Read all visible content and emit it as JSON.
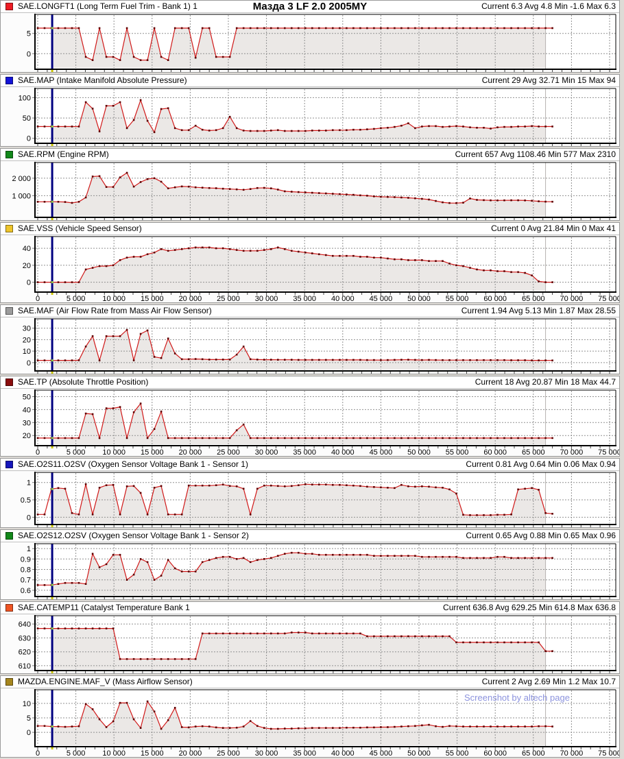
{
  "window": {
    "title": "Мазда 3 LF 2.0 2005MY",
    "watermark": "Screenshot by altech page"
  },
  "style": {
    "line_color": "#d01818",
    "point_color": "#5e0000",
    "fill_color": "#ebe8e6",
    "grid_color": "#909090",
    "cursor_color": "#000080",
    "cursor_dot_color": "#90d04a",
    "cursor_tick_color": "#cdc700",
    "selection_end_color": "#b4b0ae",
    "watermark_color": "#8c93de"
  },
  "cursor": {
    "x": 1900
  },
  "selection_end_x": 66600,
  "sample_step": 900,
  "x_axis": {
    "max": 75000,
    "major_step": 5000,
    "minor_step": 1250,
    "labels": [
      "0",
      "5 000",
      "10 000",
      "15 000",
      "20 000",
      "25 000",
      "30 000",
      "35 000",
      "40 000",
      "45 000",
      "50 000",
      "55 000",
      "60 000",
      "65 000",
      "70 000",
      "75 000"
    ]
  },
  "panels": [
    {
      "icon_color": "#ed1c24",
      "title": "SAE.LONGFT1 (Long Term Fuel Trim - Bank 1) 1",
      "stats": "Current 6.3 Avg 4.8 Min -1.6 Max 6.3",
      "h": 106,
      "x_labels": false
    },
    {
      "icon_color": "#1414d8",
      "title": "SAE.MAP (Intake Manifold Absolute Pressure)",
      "stats": "Current 29 Avg 32.71 Min 15 Max 94",
      "h": 106,
      "x_labels": false
    },
    {
      "icon_color": "#12881a",
      "title": "SAE.RPM (Engine RPM)",
      "stats": "Current 657 Avg 1108.46 Min 577 Max 2310",
      "h": 106,
      "x_labels": false
    },
    {
      "icon_color": "#eec52a",
      "title": "SAE.VSS (Vehicle Speed Sensor)",
      "stats": "Current 0 Avg 21.84 Min 0 Max 41",
      "h": 118,
      "x_labels": true
    },
    {
      "icon_color": "#9c9c9c",
      "title": "SAE.MAF (Air Flow Rate from Mass Air Flow Sensor)",
      "stats": "Current 1.94 Avg 5.13 Min 1.87 Max 28.55",
      "h": 102,
      "x_labels": false
    },
    {
      "icon_color": "#8a0d0d",
      "title": "SAE.TP (Absolute Throttle Position)",
      "stats": "Current 18 Avg 20.87 Min 18 Max 44.7",
      "h": 118,
      "x_labels": true
    },
    {
      "icon_color": "#1616bb",
      "title": "SAE.O2S11.O2SV (Oxygen Sensor Voltage Bank 1 - Sensor 1)",
      "stats": "Current 0.81 Avg 0.64 Min 0.06 Max 0.94",
      "h": 102,
      "x_labels": false
    },
    {
      "icon_color": "#12881a",
      "title": "SAE.O2S12.O2SV (Oxygen Sensor Voltage Bank 1 - Sensor 2)",
      "stats": "Current 0.65 Avg 0.88 Min 0.65 Max 0.96",
      "h": 103,
      "x_labels": false
    },
    {
      "icon_color": "#ef5423",
      "title": "SAE.CATEMP11 (Catalyst Temperature Bank 1",
      "stats": "Current 636.8 Avg 629.25 Min 614.8 Max 636.8",
      "h": 106,
      "x_labels": false
    },
    {
      "icon_color": "#a6861e",
      "title": "MAZDA.ENGINE.MAF_V (Mass Airflow Sensor)",
      "stats": "Current 2 Avg 2.69 Min 1.2 Max 10.7",
      "h": 120,
      "x_labels": true
    }
  ],
  "chart_data": [
    {
      "type": "line",
      "name": "SAE.LONGFT1",
      "ylim": [
        -3.5,
        9.5
      ],
      "y_tick_values": [
        5,
        0
      ],
      "y_tick_labels": [
        "5",
        "0"
      ],
      "values": [
        6.3,
        6.3,
        6.3,
        6.3,
        6.3,
        6.3,
        6.3,
        -0.8,
        -1.6,
        6.3,
        -0.8,
        -0.8,
        -1.6,
        6.3,
        -0.8,
        -1.6,
        -1.6,
        6.3,
        -0.8,
        -1.6,
        6.3,
        6.3,
        6.3,
        -1,
        6.3,
        6.3,
        -0.8,
        -0.8,
        -0.8,
        6.3,
        6.3,
        6.3,
        6.3,
        6.3,
        6.3,
        6.3,
        6.3,
        6.3,
        6.3,
        6.3,
        6.3,
        6.3,
        6.3,
        6.3,
        6.3,
        6.3,
        6.3,
        6.3,
        6.3,
        6.3,
        6.3,
        6.3,
        6.3,
        6.3,
        6.3,
        6.3,
        6.3,
        6.3,
        6.3,
        6.3,
        6.3,
        6.3,
        6.3,
        6.3,
        6.3,
        6.3,
        6.3,
        6.3,
        6.3,
        6.3,
        6.3,
        6.3,
        6.3,
        6.3,
        6.3,
        6.3
      ]
    },
    {
      "type": "line",
      "name": "SAE.MAP",
      "ylim": [
        -9,
        121
      ],
      "y_tick_values": [
        100,
        50,
        0
      ],
      "y_tick_labels": [
        "100",
        "50",
        "0"
      ],
      "values": [
        29,
        29,
        29,
        29,
        29,
        29,
        29,
        89,
        73,
        17,
        80,
        80,
        89,
        25,
        45,
        94,
        43,
        15,
        72,
        74,
        25,
        20,
        20,
        31,
        21,
        19,
        20,
        25,
        53,
        25,
        19,
        18,
        18,
        18,
        19,
        20,
        18,
        18,
        18,
        18,
        19,
        19,
        19,
        20,
        20,
        20,
        21,
        21,
        22,
        23,
        25,
        26,
        28,
        31,
        37,
        25,
        29,
        30,
        30,
        28,
        29,
        30,
        29,
        27,
        26,
        26,
        24,
        27,
        28,
        28,
        29,
        29,
        30,
        29,
        29,
        29
      ]
    },
    {
      "type": "line",
      "name": "SAE.RPM",
      "ylim": [
        -160,
        2860
      ],
      "y_tick_values": [
        2000,
        1000
      ],
      "y_tick_labels": [
        "2 000",
        "1 000"
      ],
      "values": [
        650,
        650,
        657,
        650,
        640,
        590,
        650,
        900,
        2100,
        2120,
        1500,
        1500,
        2050,
        2310,
        1520,
        1780,
        1950,
        2000,
        1800,
        1420,
        1480,
        1530,
        1520,
        1480,
        1460,
        1440,
        1430,
        1400,
        1380,
        1360,
        1340,
        1380,
        1440,
        1450,
        1420,
        1350,
        1250,
        1230,
        1210,
        1190,
        1170,
        1150,
        1130,
        1110,
        1090,
        1070,
        1050,
        1020,
        1000,
        960,
        940,
        930,
        920,
        900,
        880,
        850,
        820,
        780,
        700,
        620,
        580,
        577,
        600,
        840,
        760,
        745,
        735,
        730,
        735,
        740,
        740,
        730,
        710,
        680,
        660,
        657
      ]
    },
    {
      "type": "line",
      "name": "SAE.VSS",
      "ylim": [
        -10,
        53
      ],
      "y_tick_values": [
        40,
        20,
        0
      ],
      "y_tick_labels": [
        "40",
        "20",
        "0"
      ],
      "values": [
        0,
        0,
        0,
        0,
        0,
        0,
        0,
        15,
        17,
        19,
        19,
        20,
        26,
        29,
        30,
        30,
        33,
        35,
        39,
        37,
        38,
        39,
        40,
        41,
        41,
        41,
        40,
        40,
        39,
        38,
        37,
        37,
        37,
        38,
        39,
        41,
        39,
        37,
        36,
        35,
        34,
        33,
        32,
        31,
        31,
        31,
        31,
        30,
        30,
        29,
        29,
        28,
        27,
        27,
        26,
        26,
        26,
        25,
        25,
        25,
        22,
        20,
        19,
        17,
        15,
        14,
        14,
        13,
        13,
        12,
        12,
        11,
        8,
        1,
        0,
        0
      ]
    },
    {
      "type": "line",
      "name": "SAE.MAF",
      "ylim": [
        -6,
        37.5
      ],
      "y_tick_values": [
        30,
        20,
        10,
        0
      ],
      "y_tick_labels": [
        "30",
        "20",
        "10",
        "0"
      ],
      "values": [
        2,
        2,
        1.9,
        2,
        2,
        2,
        2.1,
        14,
        23,
        1.9,
        23,
        23,
        23,
        28.5,
        2,
        25,
        28,
        5,
        4,
        21,
        8,
        3,
        3,
        3.2,
        3,
        2.7,
        2.7,
        2.7,
        2.7,
        7,
        14,
        3,
        2.7,
        2.6,
        2.6,
        2.5,
        2.5,
        2.5,
        2.4,
        2.4,
        2.4,
        2.4,
        2.4,
        2.4,
        2.4,
        2.4,
        2.4,
        2.4,
        2.3,
        2.3,
        2.2,
        2.3,
        2.4,
        2.5,
        2.6,
        2.4,
        2.3,
        2.4,
        2.3,
        2.2,
        2.2,
        2.2,
        2.2,
        2.2,
        2.2,
        2.2,
        2.2,
        2.2,
        2.2,
        2.1,
        2.1,
        2.1,
        2,
        2,
        2,
        1.94
      ]
    },
    {
      "type": "line",
      "name": "SAE.TP",
      "ylim": [
        13.2,
        54.5
      ],
      "y_tick_values": [
        50,
        40,
        30,
        20
      ],
      "y_tick_labels": [
        "50",
        "40",
        "30",
        "20"
      ],
      "values": [
        18,
        18,
        18,
        18,
        18,
        18,
        18,
        37,
        36.5,
        18,
        41,
        41,
        42,
        18,
        38,
        44.7,
        18,
        25,
        38.5,
        18,
        18,
        18,
        18,
        18,
        18,
        18,
        18,
        18,
        18,
        24,
        28.5,
        18,
        18,
        18,
        18,
        18,
        18,
        18,
        18,
        18,
        18,
        18,
        18,
        18,
        18,
        18,
        18,
        18,
        18,
        18,
        18,
        18,
        18,
        18,
        18,
        18,
        18,
        18,
        18,
        18,
        18,
        18,
        18,
        18,
        18,
        18,
        18,
        18,
        18,
        18,
        18,
        18,
        18,
        18,
        18,
        18
      ]
    },
    {
      "type": "line",
      "name": "SAE.O2S11.O2SV",
      "ylim": [
        -0.17,
        1.27
      ],
      "y_tick_values": [
        1,
        0.5,
        0
      ],
      "y_tick_labels": [
        "1",
        "0.5",
        "0"
      ],
      "values": [
        0.08,
        0.08,
        0.81,
        0.84,
        0.82,
        0.12,
        0.08,
        0.95,
        0.08,
        0.85,
        0.92,
        0.93,
        0.08,
        0.89,
        0.9,
        0.7,
        0.08,
        0.85,
        0.9,
        0.08,
        0.08,
        0.08,
        0.91,
        0.91,
        0.91,
        0.91,
        0.92,
        0.94,
        0.9,
        0.89,
        0.82,
        0.08,
        0.82,
        0.91,
        0.91,
        0.9,
        0.89,
        0.9,
        0.92,
        0.95,
        0.94,
        0.94,
        0.94,
        0.93,
        0.93,
        0.92,
        0.91,
        0.9,
        0.88,
        0.87,
        0.86,
        0.85,
        0.84,
        0.93,
        0.89,
        0.88,
        0.89,
        0.88,
        0.86,
        0.85,
        0.8,
        0.68,
        0.07,
        0.06,
        0.06,
        0.06,
        0.06,
        0.07,
        0.07,
        0.08,
        0.8,
        0.82,
        0.84,
        0.79,
        0.12,
        0.1
      ]
    },
    {
      "type": "line",
      "name": "SAE.O2S12.O2SV",
      "ylim": [
        0.553,
        1.04
      ],
      "y_tick_values": [
        1,
        0.9,
        0.8,
        0.7,
        0.6
      ],
      "y_tick_labels": [
        "1",
        "0.9",
        "0.8",
        "0.7",
        "0.6"
      ],
      "values": [
        0.65,
        0.65,
        0.65,
        0.66,
        0.67,
        0.67,
        0.67,
        0.66,
        0.95,
        0.82,
        0.85,
        0.94,
        0.94,
        0.7,
        0.75,
        0.9,
        0.87,
        0.7,
        0.74,
        0.89,
        0.81,
        0.78,
        0.78,
        0.78,
        0.87,
        0.89,
        0.91,
        0.92,
        0.92,
        0.9,
        0.91,
        0.87,
        0.89,
        0.9,
        0.91,
        0.93,
        0.95,
        0.96,
        0.96,
        0.95,
        0.95,
        0.94,
        0.94,
        0.94,
        0.94,
        0.94,
        0.94,
        0.94,
        0.94,
        0.93,
        0.93,
        0.93,
        0.93,
        0.93,
        0.93,
        0.93,
        0.92,
        0.92,
        0.92,
        0.92,
        0.92,
        0.92,
        0.91,
        0.91,
        0.91,
        0.91,
        0.91,
        0.92,
        0.92,
        0.91,
        0.91,
        0.91,
        0.91,
        0.91,
        0.91,
        0.91
      ]
    },
    {
      "type": "line",
      "name": "SAE.CATEMP11",
      "ylim": [
        607.5,
        645.5
      ],
      "y_tick_values": [
        640,
        630,
        620,
        610
      ],
      "y_tick_labels": [
        "640",
        "630",
        "620",
        "610"
      ],
      "values": [
        636.8,
        636.8,
        636.8,
        636.8,
        636.8,
        636.8,
        636.8,
        636.8,
        636.8,
        636.8,
        636.8,
        636.8,
        614.8,
        614.8,
        614.8,
        614.8,
        614.8,
        614.8,
        614.8,
        614.8,
        614.8,
        614.8,
        614.8,
        614.8,
        633.2,
        633.2,
        633.2,
        633.2,
        633.2,
        633.2,
        633.2,
        633.2,
        633.2,
        633.2,
        633.2,
        633.2,
        633.2,
        633.9,
        633.9,
        633.9,
        633.2,
        633.2,
        633.2,
        633.2,
        633.2,
        633.2,
        633.2,
        633.2,
        631.2,
        631.2,
        631.2,
        631.2,
        631.2,
        631.2,
        631.2,
        631.2,
        631.2,
        631.2,
        631.2,
        631.2,
        631.2,
        626.8,
        626.8,
        626.8,
        626.8,
        626.8,
        626.8,
        626.8,
        626.8,
        626.8,
        626.8,
        626.8,
        626.8,
        626.8,
        620.5,
        620.5
      ]
    },
    {
      "type": "line",
      "name": "MAZDA.ENGINE.MAF_V",
      "ylim": [
        -4.5,
        14.5
      ],
      "y_tick_values": [
        10,
        5,
        0
      ],
      "y_tick_labels": [
        "10",
        "5",
        "0"
      ],
      "values": [
        2.2,
        2.2,
        2,
        2,
        1.9,
        2,
        2.1,
        9.8,
        8,
        4.5,
        1.8,
        3.8,
        10.2,
        10.2,
        4.5,
        1.5,
        10.7,
        7.2,
        1.2,
        4.2,
        8.5,
        1.8,
        1.7,
        2,
        2.1,
        2,
        1.7,
        1.5,
        1.5,
        1.6,
        2,
        3.9,
        2.2,
        1.5,
        1.2,
        1.2,
        1.3,
        1.3,
        1.4,
        1.4,
        1.5,
        1.5,
        1.5,
        1.5,
        1.5,
        1.6,
        1.6,
        1.6,
        1.7,
        1.7,
        1.8,
        1.8,
        1.9,
        2,
        2.1,
        2.2,
        2.4,
        2.6,
        2.1,
        1.9,
        2.2,
        2.1,
        2,
        2,
        2,
        2,
        2,
        2,
        2,
        2,
        2,
        2,
        2,
        2.1,
        2.1,
        2
      ]
    }
  ]
}
